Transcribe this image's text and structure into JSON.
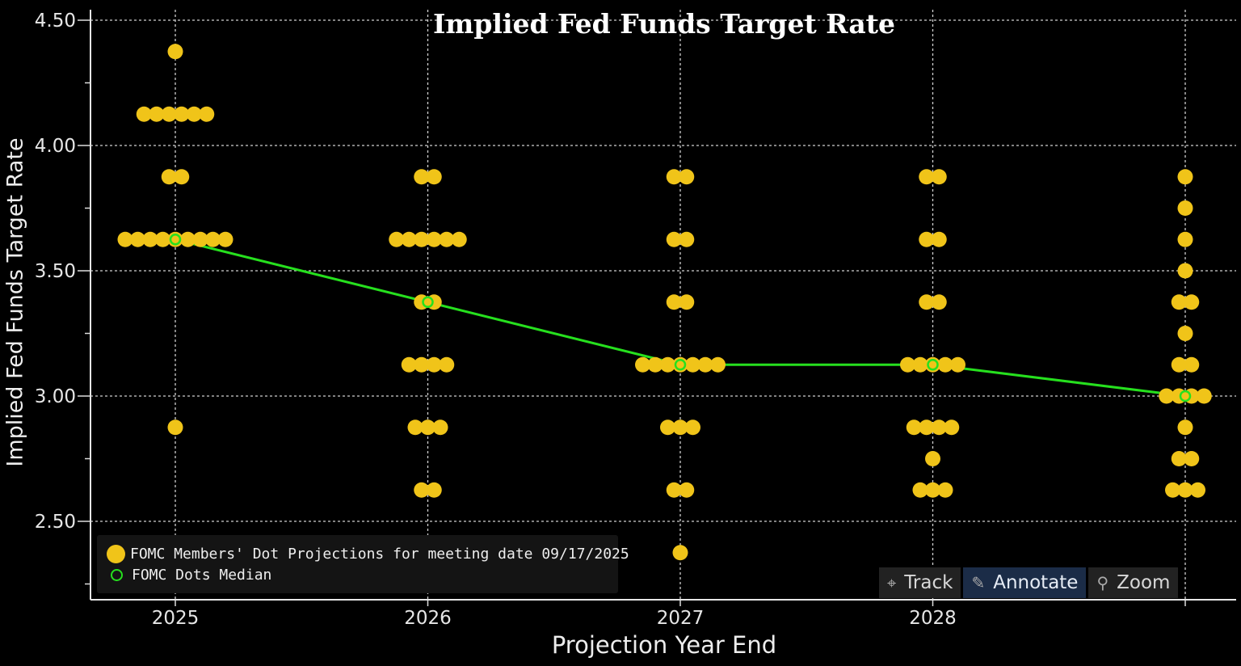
{
  "chart_data": {
    "type": "scatter",
    "title": "Implied Fed Funds Target Rate",
    "xlabel": "Projection Year End",
    "ylabel": "Implied Fed Funds Target Rate",
    "categories": [
      "2025",
      "2026",
      "2027",
      "2028",
      ""
    ],
    "yticks": [
      "2.50",
      "3.00",
      "3.50",
      "4.00",
      "4.50"
    ],
    "ylim": [
      2.25,
      4.55
    ],
    "grid": true,
    "legend_position": "bottom-left",
    "series": [
      {
        "name": "FOMC Members' Dot Projections for meeting date 09/17/2025",
        "color": "#f0c419",
        "dots": [
          [
            {
              "y": 4.375,
              "n": 1
            },
            {
              "y": 4.125,
              "n": 6
            },
            {
              "y": 3.875,
              "n": 2
            },
            {
              "y": 3.625,
              "n": 9
            },
            {
              "y": 2.875,
              "n": 1
            }
          ],
          [
            {
              "y": 3.875,
              "n": 2
            },
            {
              "y": 3.625,
              "n": 6
            },
            {
              "y": 3.375,
              "n": 2
            },
            {
              "y": 3.125,
              "n": 4
            },
            {
              "y": 2.875,
              "n": 3
            },
            {
              "y": 2.625,
              "n": 2
            }
          ],
          [
            {
              "y": 3.875,
              "n": 2
            },
            {
              "y": 3.625,
              "n": 2
            },
            {
              "y": 3.375,
              "n": 2
            },
            {
              "y": 3.125,
              "n": 7
            },
            {
              "y": 2.875,
              "n": 3
            },
            {
              "y": 2.625,
              "n": 2
            },
            {
              "y": 2.375,
              "n": 1
            }
          ],
          [
            {
              "y": 3.875,
              "n": 2
            },
            {
              "y": 3.625,
              "n": 2
            },
            {
              "y": 3.375,
              "n": 2
            },
            {
              "y": 3.125,
              "n": 5
            },
            {
              "y": 2.875,
              "n": 4
            },
            {
              "y": 2.75,
              "n": 1
            },
            {
              "y": 2.625,
              "n": 3
            }
          ],
          [
            {
              "y": 3.875,
              "n": 1
            },
            {
              "y": 3.75,
              "n": 1
            },
            {
              "y": 3.625,
              "n": 1
            },
            {
              "y": 3.5,
              "n": 1
            },
            {
              "y": 3.375,
              "n": 2
            },
            {
              "y": 3.25,
              "n": 1
            },
            {
              "y": 3.125,
              "n": 2
            },
            {
              "y": 3.0,
              "n": 4
            },
            {
              "y": 2.875,
              "n": 1
            },
            {
              "y": 2.75,
              "n": 2
            },
            {
              "y": 2.625,
              "n": 3
            }
          ]
        ]
      },
      {
        "name": "FOMC Dots Median",
        "color": "#26e01e",
        "values": [
          3.625,
          3.375,
          3.125,
          3.125,
          3.0
        ]
      }
    ]
  },
  "toolbar": {
    "track": "Track",
    "annotate": "Annotate",
    "zoom": "Zoom",
    "track_icon": "crosshair-icon",
    "annotate_icon": "pencil-icon",
    "zoom_icon": "magnifier-icon"
  }
}
